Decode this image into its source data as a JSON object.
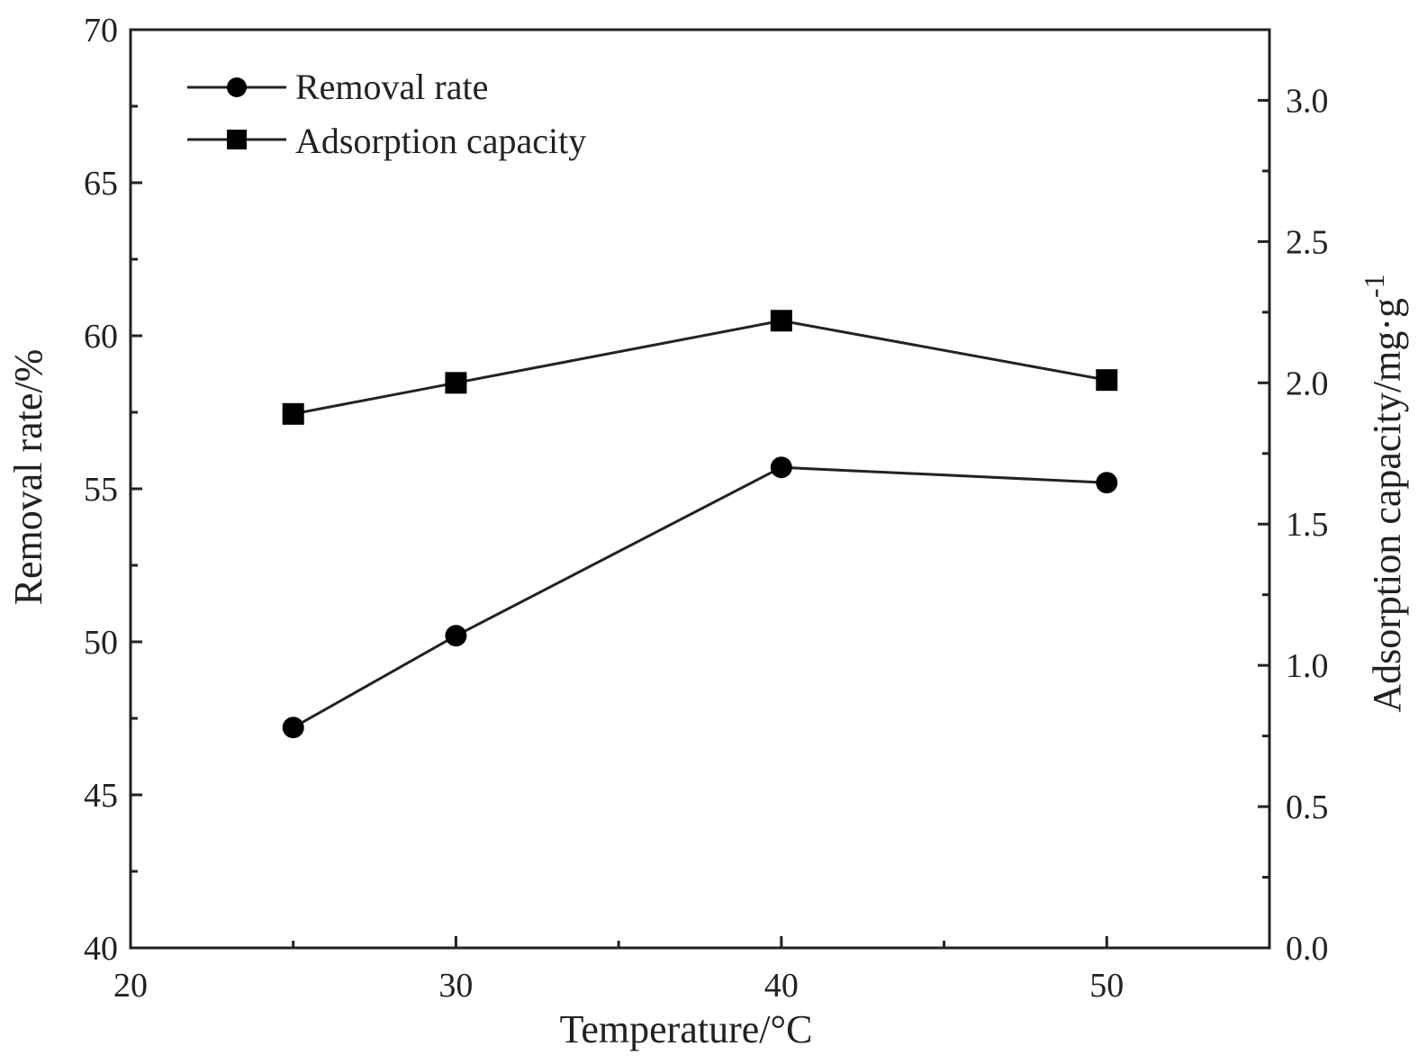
{
  "chart_data": {
    "type": "line",
    "title": "",
    "xlabel": "Temperature/°C",
    "ylabel": "Removal rate/%",
    "y2label": "Adsorption capacity/mg·g",
    "y2label_sup": "-1",
    "xlim": [
      20,
      55
    ],
    "ylim": [
      40,
      70
    ],
    "y2lim": [
      0,
      3.25
    ],
    "xticks": [
      "20",
      "30",
      "40",
      "50"
    ],
    "yticks": [
      "40",
      "45",
      "50",
      "55",
      "60",
      "65",
      "70"
    ],
    "y2ticks": [
      "0.0",
      "0.5",
      "1.0",
      "1.5",
      "2.0",
      "2.5",
      "3.0"
    ],
    "grid": false,
    "legend_position": "top-left",
    "x": [
      25,
      30,
      40,
      50
    ],
    "series": [
      {
        "name": "Removal rate",
        "axis": "left",
        "marker": "circle",
        "values": [
          47.2,
          50.2,
          55.7,
          55.2
        ]
      },
      {
        "name": "Adsorption capacity",
        "axis": "right",
        "marker": "square",
        "values": [
          1.89,
          2.0,
          2.22,
          2.01
        ]
      }
    ],
    "color": "#000000"
  }
}
